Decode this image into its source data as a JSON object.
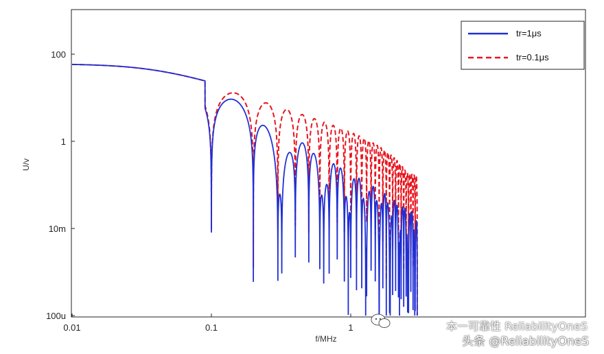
{
  "chart_data": {
    "type": "line",
    "xscale": "log",
    "yscale": "log",
    "xlim": [
      0.01,
      3
    ],
    "ylim": [
      0.0001,
      10
    ],
    "xlabel": "f/MHz",
    "ylabel": "U/v",
    "xticks": [
      {
        "value": 0.01,
        "label": "0.01"
      },
      {
        "value": 0.1,
        "label": "0.1"
      },
      {
        "value": 1,
        "label": "1"
      }
    ],
    "yticks": [
      {
        "value": 0.0001,
        "label": "100u"
      },
      {
        "value": 0.01,
        "label": "10m"
      },
      {
        "value": 1,
        "label": "1"
      },
      {
        "value": 100,
        "label": "100"
      }
    ],
    "legend_position": "top-right",
    "series": [
      {
        "name": "tr=1μs",
        "color": "#1f2fd4",
        "style": "solid",
        "envelope": {
          "low_freq_level": 60,
          "corner_freq_mhz": 0.04,
          "second_corner_mhz": 0.32
        }
      },
      {
        "name": "tr=0.1μs",
        "color": "#e8141c",
        "style": "dashed",
        "envelope": {
          "low_freq_level": 60,
          "corner_freq_mhz": 0.04,
          "second_corner_mhz": 3.2
        }
      }
    ],
    "notch_spacing_mhz": 0.1,
    "grid": false
  },
  "watermark": {
    "line1": "本一可靠性 ReliabilityOneS",
    "line2": "头条 @ReliabilityOneS"
  }
}
